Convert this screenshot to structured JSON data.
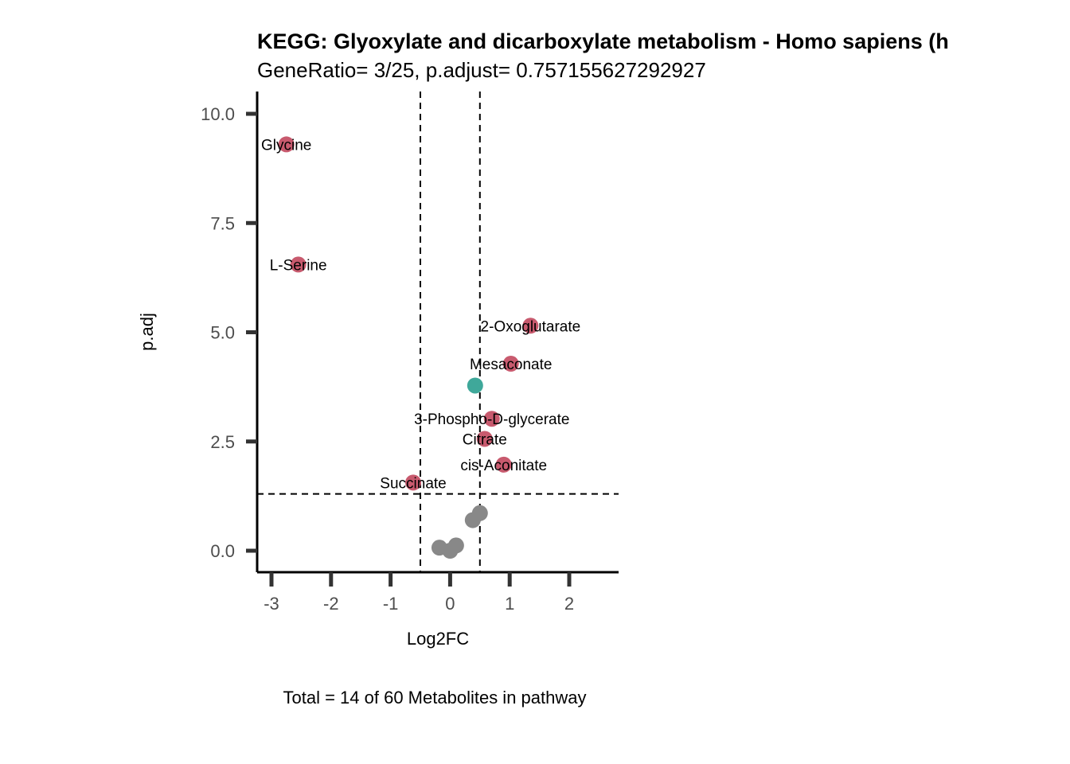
{
  "chart_data": {
    "type": "scatter",
    "title": "KEGG: Glyoxylate and dicarboxylate metabolism - Homo sapiens (h",
    "subtitle": "GeneRatio= 3/25, p.adjust= 0.757155627292927",
    "xlabel": "Log2FC",
    "ylabel": "p.adj",
    "caption": "Total = 14 of 60 Metabolites in pathway",
    "xlim": [
      -3.25,
      2.8
    ],
    "ylim": [
      -0.5,
      10.5
    ],
    "x_ticks": [
      -3,
      -2,
      -1,
      0,
      1,
      2
    ],
    "x_tick_labels": [
      "-3",
      "-2",
      "-1",
      "0",
      "1",
      "2"
    ],
    "y_ticks": [
      0,
      2.5,
      5,
      7.5,
      10
    ],
    "y_tick_labels": [
      "0.0",
      "2.5",
      "5.0",
      "7.5",
      "10.0"
    ],
    "thresholds": {
      "x": [
        -0.5,
        0.5
      ],
      "y": 1.3
    },
    "colors": {
      "significant": "#c85a6e",
      "teal": "#3fa89a",
      "nonsignificant": "#888888"
    },
    "points": [
      {
        "x": -2.75,
        "y": 9.3,
        "group": "significant",
        "label": "Glycine"
      },
      {
        "x": -2.55,
        "y": 6.55,
        "group": "significant",
        "label": "L-Serine"
      },
      {
        "x": 1.35,
        "y": 5.15,
        "group": "significant",
        "label": "2-Oxoglutarate"
      },
      {
        "x": 1.02,
        "y": 4.28,
        "group": "significant",
        "label": "Mesaconate"
      },
      {
        "x": 0.42,
        "y": 3.78,
        "group": "teal",
        "label": ""
      },
      {
        "x": 0.7,
        "y": 3.02,
        "group": "significant",
        "label": "3-Phospho-D-glycerate"
      },
      {
        "x": 0.58,
        "y": 2.56,
        "group": "significant",
        "label": "Citrate"
      },
      {
        "x": 0.9,
        "y": 1.97,
        "group": "significant",
        "label": "cis-Aconitate"
      },
      {
        "x": -0.62,
        "y": 1.56,
        "group": "significant",
        "label": "Succinate"
      },
      {
        "x": 0.5,
        "y": 0.86,
        "group": "nonsignificant",
        "label": ""
      },
      {
        "x": 0.38,
        "y": 0.7,
        "group": "nonsignificant",
        "label": ""
      },
      {
        "x": 0.1,
        "y": 0.12,
        "group": "nonsignificant",
        "label": ""
      },
      {
        "x": -0.18,
        "y": 0.07,
        "group": "nonsignificant",
        "label": ""
      },
      {
        "x": 0.0,
        "y": 0.0,
        "group": "nonsignificant",
        "label": ""
      }
    ]
  }
}
